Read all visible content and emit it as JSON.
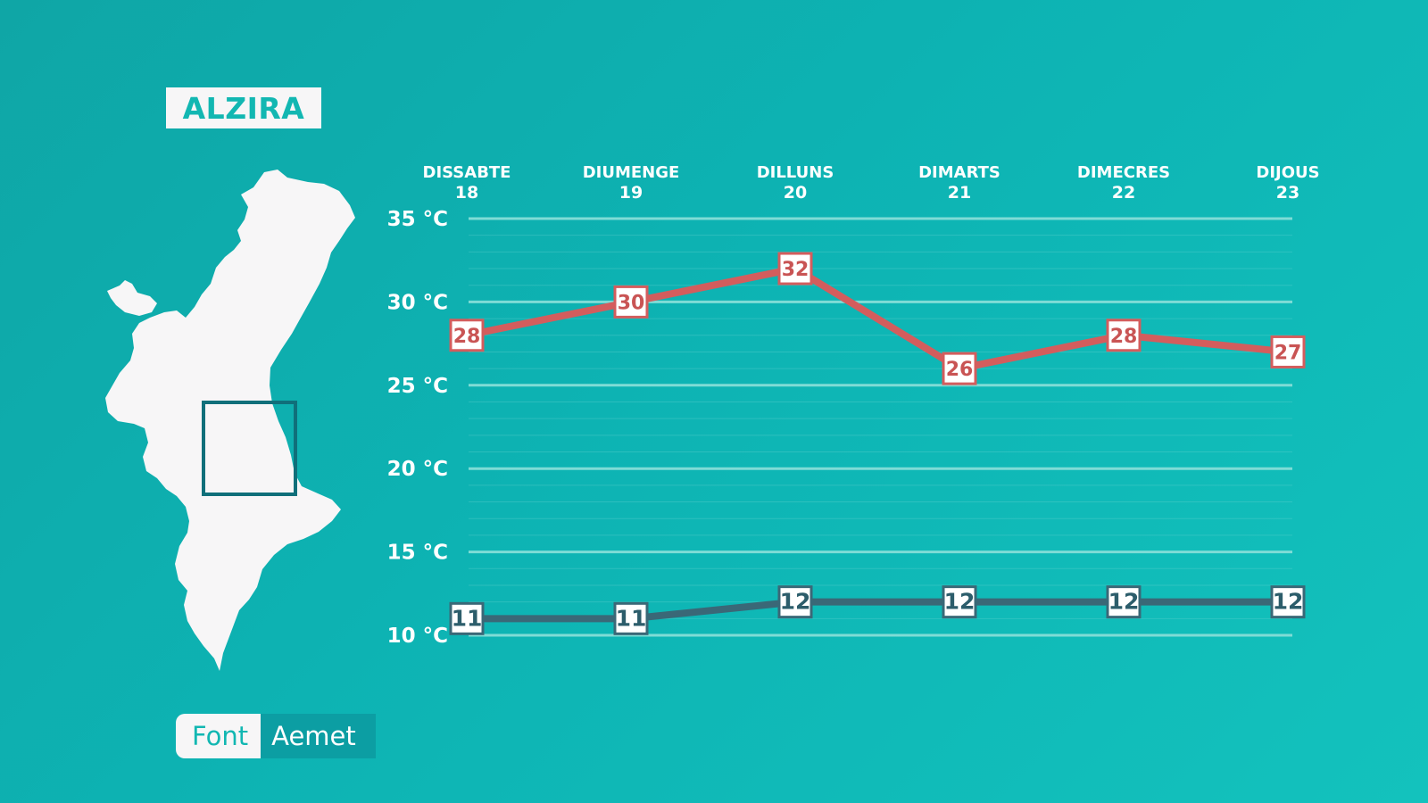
{
  "location": "ALZIRA",
  "source": {
    "label": "Font",
    "value": "Aemet"
  },
  "icons": {
    "map": "valencian-community-map-icon",
    "area": "location-square-icon"
  },
  "colors": {
    "background": "#0db3b3",
    "max_line": "#d35d5d",
    "min_line": "#3a6877",
    "grid": "#7fdcd6",
    "badge_bg": "#f7f6f7",
    "badge_text": "#12b7b2"
  },
  "chart_data": {
    "type": "line",
    "categories": [
      {
        "day": "DISSABTE",
        "date": "18"
      },
      {
        "day": "DIUMENGE",
        "date": "19"
      },
      {
        "day": "DILLUNS",
        "date": "20"
      },
      {
        "day": "DIMARTS",
        "date": "21"
      },
      {
        "day": "DIMECRES",
        "date": "22"
      },
      {
        "day": "DIJOUS",
        "date": "23"
      }
    ],
    "series": [
      {
        "values": [
          28,
          30,
          32,
          26,
          28,
          27
        ]
      },
      {
        "values": [
          11,
          11,
          12,
          12,
          12,
          12
        ]
      }
    ],
    "y_ticks": [
      "35 °C",
      "30 °C",
      "25 °C",
      "20 °C",
      "15 °C",
      "10 °C"
    ],
    "y_tick_values": [
      35,
      30,
      25,
      20,
      15,
      10
    ],
    "ylim": [
      10,
      35
    ],
    "grid": true
  }
}
